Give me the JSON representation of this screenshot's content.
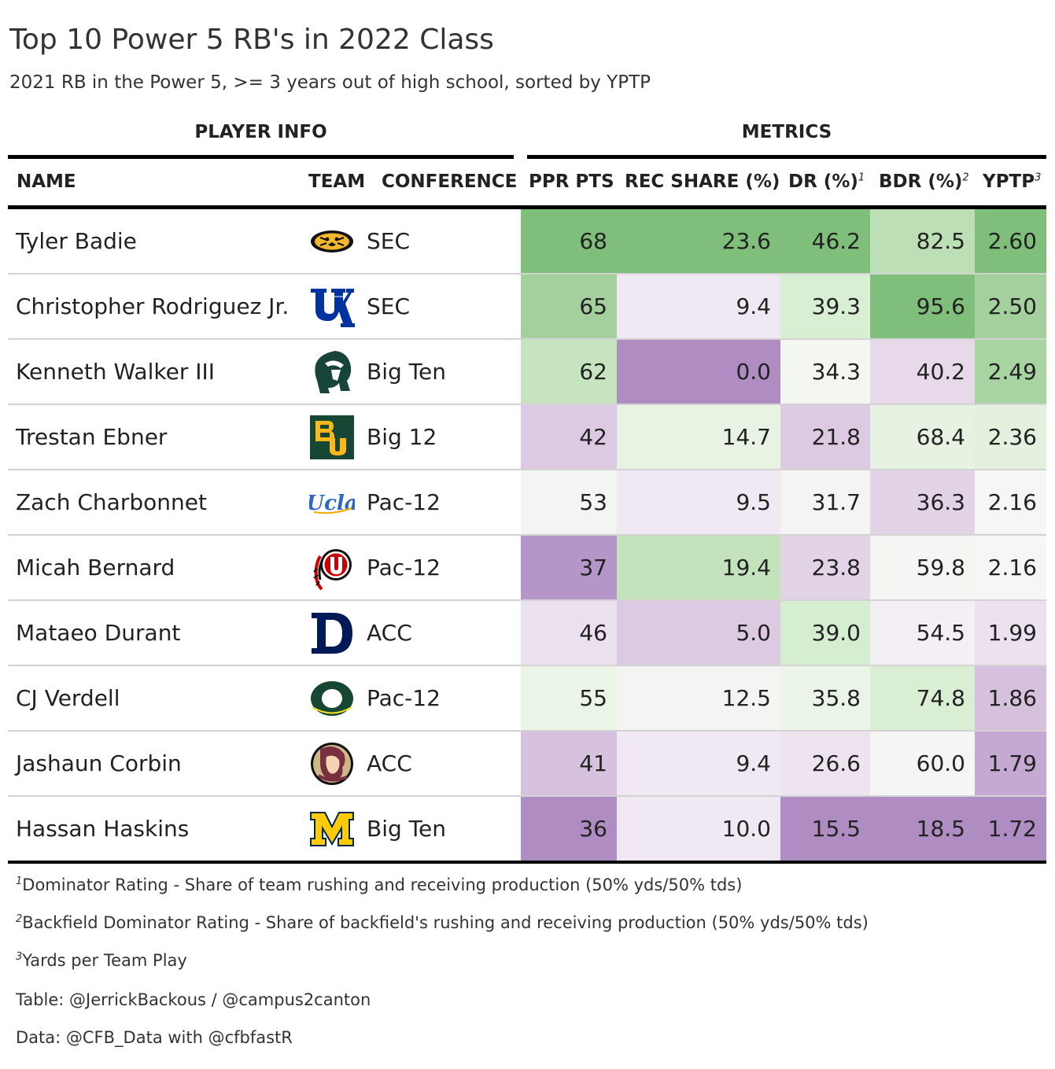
{
  "title": "Top 10 Power 5 RB's in 2022 Class",
  "subtitle": "2021 RB in the Power 5, >= 3 years out of high school, sorted by YPTP",
  "spanners": {
    "player_info": "PLAYER INFO",
    "metrics": "METRICS"
  },
  "columns": {
    "name": "NAME",
    "team": "TEAM",
    "conference": "CONFERENCE",
    "ppr": "PPR PTS",
    "rec_share": "REC SHARE (%)",
    "dr": "DR (%)",
    "dr_note": "1",
    "bdr": "BDR (%)",
    "bdr_note": "2",
    "yptp": "YPTP",
    "yptp_note": "3"
  },
  "rows": [
    {
      "name": "Tyler Badie",
      "team_icon": "missouri-tiger-logo-icon",
      "conference": "SEC",
      "ppr": "68",
      "rec_share": "23.6",
      "dr": "46.2",
      "bdr": "82.5",
      "yptp": "2.60",
      "colors": {
        "ppr": "#7fbf7b",
        "rec_share": "#7fbf7b",
        "dr": "#7fbf7b",
        "bdr": "#bcdfb6",
        "yptp": "#7fbf7b"
      }
    },
    {
      "name": "Christopher Rodriguez Jr.",
      "team_icon": "kentucky-uk-logo-icon",
      "conference": "SEC",
      "ppr": "65",
      "rec_share": "9.4",
      "dr": "39.3",
      "bdr": "95.6",
      "yptp": "2.50",
      "colors": {
        "ppr": "#a3d09c",
        "rec_share": "#f0e8f2",
        "dr": "#d9efd3",
        "bdr": "#7fbf7b",
        "yptp": "#a3d09c"
      }
    },
    {
      "name": "Kenneth Walker III",
      "team_icon": "michigan-state-spartan-logo-icon",
      "conference": "Big Ten",
      "ppr": "62",
      "rec_share": "0.0",
      "dr": "34.3",
      "bdr": "40.2",
      "yptp": "2.49",
      "colors": {
        "ppr": "#c6e5bf",
        "rec_share": "#af8dc3",
        "dr": "#f3f6f1",
        "bdr": "#e7d9ea",
        "yptp": "#a8d4a1"
      }
    },
    {
      "name": "Trestan Ebner",
      "team_icon": "baylor-bu-logo-icon",
      "conference": "Big 12",
      "ppr": "42",
      "rec_share": "14.7",
      "dr": "21.8",
      "bdr": "68.4",
      "yptp": "2.36",
      "colors": {
        "ppr": "#dccae3",
        "rec_share": "#e8f3e4",
        "dr": "#dccae3",
        "bdr": "#e7f2e3",
        "yptp": "#e3f1de"
      }
    },
    {
      "name": "Zach Charbonnet",
      "team_icon": "ucla-script-logo-icon",
      "conference": "Pac-12",
      "ppr": "53",
      "rec_share": "9.5",
      "dr": "31.7",
      "bdr": "36.3",
      "yptp": "2.16",
      "colors": {
        "ppr": "#f3f5f2",
        "rec_share": "#f0e8f2",
        "dr": "#f4f4f3",
        "bdr": "#e2d3e7",
        "yptp": "#f6f6f6"
      }
    },
    {
      "name": "Micah Bernard",
      "team_icon": "utah-utes-logo-icon",
      "conference": "Pac-12",
      "ppr": "37",
      "rec_share": "19.4",
      "dr": "23.8",
      "bdr": "59.8",
      "yptp": "2.16",
      "colors": {
        "ppr": "#b497c8",
        "rec_share": "#c3e3bc",
        "dr": "#e2d3e7",
        "bdr": "#f5f5f4",
        "yptp": "#f6f6f6"
      }
    },
    {
      "name": "Mataeo Durant",
      "team_icon": "duke-d-logo-icon",
      "conference": "ACC",
      "ppr": "46",
      "rec_share": "5.0",
      "dr": "39.0",
      "bdr": "54.5",
      "yptp": "1.99",
      "colors": {
        "ppr": "#ebe0ed",
        "rec_share": "#dccae3",
        "dr": "#d6eed0",
        "bdr": "#f3eff4",
        "yptp": "#ece1ee"
      }
    },
    {
      "name": "CJ Verdell",
      "team_icon": "oregon-o-logo-icon",
      "conference": "Pac-12",
      "ppr": "55",
      "rec_share": "12.5",
      "dr": "35.8",
      "bdr": "74.8",
      "yptp": "1.86",
      "colors": {
        "ppr": "#eaf4e7",
        "rec_share": "#f4f5f3",
        "dr": "#eaf4e7",
        "bdr": "#d9eed3",
        "yptp": "#d5c0de"
      }
    },
    {
      "name": "Jashaun Corbin",
      "team_icon": "florida-state-seminole-logo-icon",
      "conference": "ACC",
      "ppr": "41",
      "rec_share": "9.4",
      "dr": "26.6",
      "bdr": "60.0",
      "yptp": "1.79",
      "colors": {
        "ppr": "#d6c1de",
        "rec_share": "#f0e8f2",
        "dr": "#eee4f0",
        "bdr": "#f5f5f4",
        "yptp": "#c5a9d3"
      }
    },
    {
      "name": "Hassan Haskins",
      "team_icon": "michigan-block-m-logo-icon",
      "conference": "Big Ten",
      "ppr": "36",
      "rec_share": "10.0",
      "dr": "15.5",
      "bdr": "18.5",
      "yptp": "1.72",
      "colors": {
        "ppr": "#af8dc3",
        "rec_share": "#f0e8f2",
        "dr": "#af8dc3",
        "bdr": "#af8dc3",
        "yptp": "#af8dc3"
      }
    }
  ],
  "footnotes": [
    {
      "mark": "1",
      "text": "Dominator Rating - Share of team rushing and receiving production (50% yds/50% tds)"
    },
    {
      "mark": "2",
      "text": "Backfield Dominator Rating - Share of backfield's rushing and receiving production (50% yds/50% tds)"
    },
    {
      "mark": "3",
      "text": "Yards per Team Play"
    }
  ],
  "source_notes": {
    "table": "Table: @JerrickBackous / @campus2canton",
    "data": "Data: @CFB_Data with @cfbfastR"
  }
}
